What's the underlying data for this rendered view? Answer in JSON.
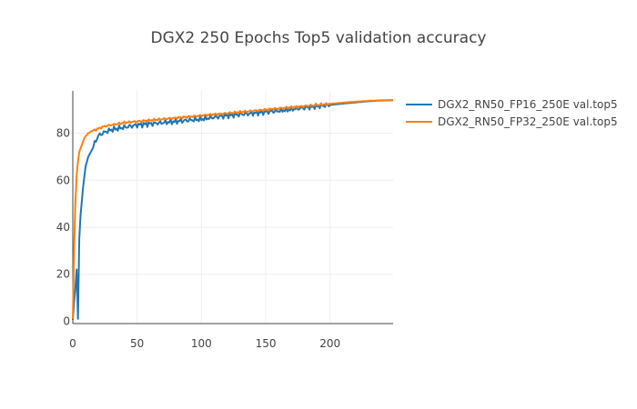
{
  "chart_data": {
    "type": "line",
    "title": "DGX2 250 Epochs Top5 validation accuracy",
    "xlabel": "",
    "ylabel": "",
    "xlim": [
      0,
      249
    ],
    "ylim": [
      -1,
      98
    ],
    "x_ticks": [
      0,
      50,
      100,
      150,
      200
    ],
    "y_ticks": [
      0,
      20,
      40,
      60,
      80
    ],
    "grid": true,
    "legend_position": "top-right outside",
    "series": [
      {
        "name": "DGX2_RN50_FP16_250E val.top5",
        "color": "#1f77b4",
        "points": [
          [
            0,
            0.5
          ],
          [
            1,
            8
          ],
          [
            2,
            14
          ],
          [
            3,
            22
          ],
          [
            4,
            1
          ],
          [
            5,
            35
          ],
          [
            6,
            45
          ],
          [
            8,
            57
          ],
          [
            10,
            66
          ],
          [
            12,
            70
          ],
          [
            15,
            73
          ],
          [
            18,
            77
          ],
          [
            20,
            79
          ],
          [
            25,
            80.5
          ],
          [
            30,
            81.5
          ],
          [
            35,
            82
          ],
          [
            40,
            82.5
          ],
          [
            45,
            83
          ],
          [
            50,
            83.5
          ],
          [
            60,
            84
          ],
          [
            70,
            84.5
          ],
          [
            80,
            85
          ],
          [
            90,
            85.5
          ],
          [
            100,
            86
          ],
          [
            110,
            86.8
          ],
          [
            120,
            87.5
          ],
          [
            130,
            88
          ],
          [
            140,
            88.5
          ],
          [
            150,
            89
          ],
          [
            160,
            89.5
          ],
          [
            170,
            90.2
          ],
          [
            180,
            90.8
          ],
          [
            190,
            91.5
          ],
          [
            200,
            92
          ],
          [
            210,
            92.6
          ],
          [
            220,
            93.1
          ],
          [
            230,
            93.6
          ],
          [
            240,
            93.9
          ],
          [
            249,
            94
          ]
        ]
      },
      {
        "name": "DGX2_RN50_FP32_250E val.top5",
        "color": "#ff7f0e",
        "points": [
          [
            0,
            1
          ],
          [
            1,
            30
          ],
          [
            2,
            50
          ],
          [
            3,
            62
          ],
          [
            4,
            68
          ],
          [
            5,
            72
          ],
          [
            7,
            75
          ],
          [
            9,
            78
          ],
          [
            12,
            80
          ],
          [
            15,
            81
          ],
          [
            18,
            81.5
          ],
          [
            20,
            82
          ],
          [
            25,
            83
          ],
          [
            30,
            83.5
          ],
          [
            40,
            84.5
          ],
          [
            50,
            85
          ],
          [
            60,
            85.5
          ],
          [
            70,
            86
          ],
          [
            80,
            86.5
          ],
          [
            90,
            87
          ],
          [
            100,
            87.5
          ],
          [
            110,
            88
          ],
          [
            120,
            88.5
          ],
          [
            130,
            89
          ],
          [
            140,
            89.5
          ],
          [
            150,
            90
          ],
          [
            160,
            90.5
          ],
          [
            170,
            91
          ],
          [
            180,
            91.5
          ],
          [
            190,
            92
          ],
          [
            200,
            92.5
          ],
          [
            210,
            93
          ],
          [
            220,
            93.4
          ],
          [
            230,
            93.8
          ],
          [
            240,
            94
          ],
          [
            249,
            94.1
          ]
        ]
      }
    ]
  }
}
